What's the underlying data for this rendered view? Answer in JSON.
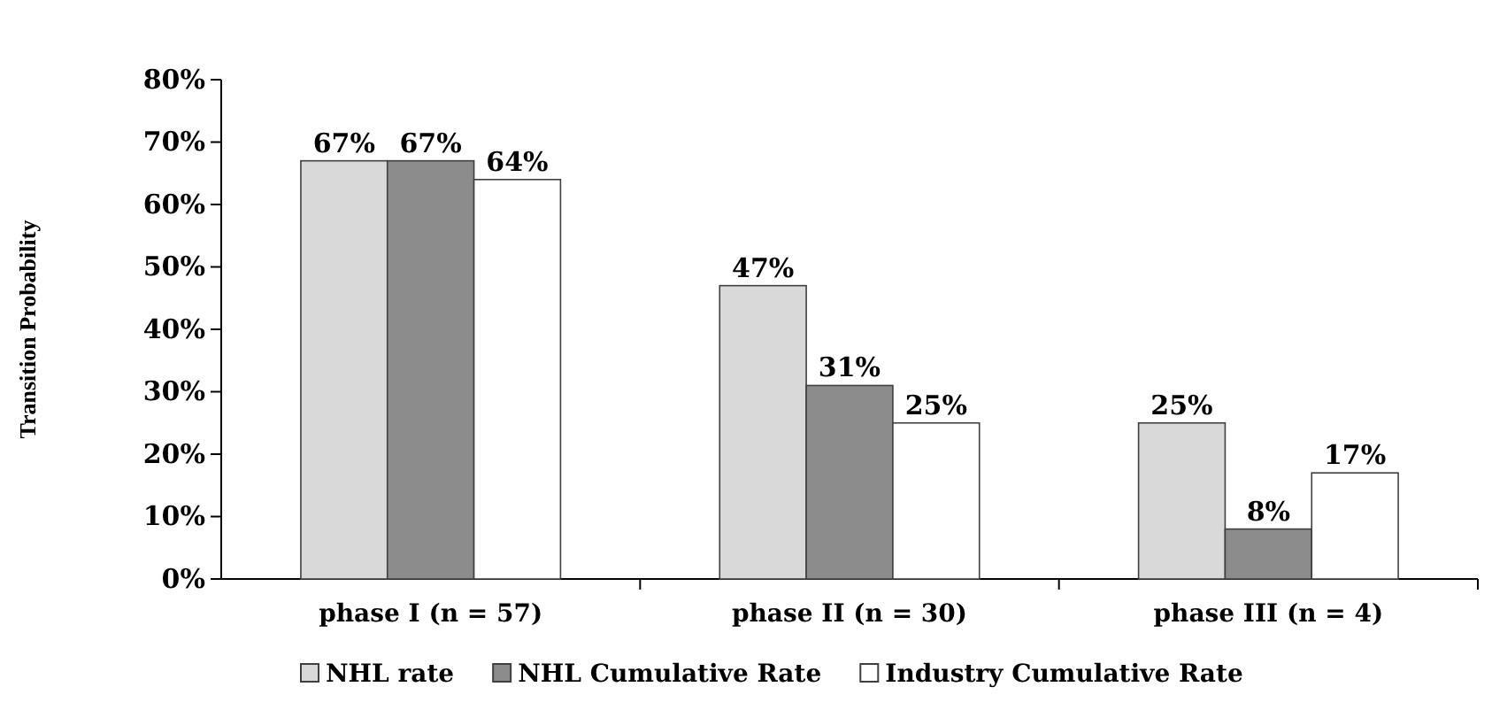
{
  "chart_data": {
    "type": "bar",
    "ylabel": "Transition Probability",
    "categories": [
      "phase I (n = 57)",
      "phase II (n = 30)",
      "phase III (n = 4)"
    ],
    "series": [
      {
        "name": "NHL rate",
        "color": "#d9d9d9",
        "values": [
          67,
          47,
          25
        ]
      },
      {
        "name": "NHL Cumulative Rate",
        "color": "#8c8c8c",
        "values": [
          67,
          31,
          8
        ]
      },
      {
        "name": "Industry Cumulative Rate",
        "color": "#ffffff",
        "values": [
          64,
          25,
          17
        ]
      }
    ],
    "ylim": [
      0,
      80
    ],
    "yticks": [
      {
        "value": 0,
        "label": "0%"
      },
      {
        "value": 10,
        "label": "10%"
      },
      {
        "value": 20,
        "label": "20%"
      },
      {
        "value": 30,
        "label": "30%"
      },
      {
        "value": 40,
        "label": "40%"
      },
      {
        "value": 50,
        "label": "50%"
      },
      {
        "value": 60,
        "label": "60%"
      },
      {
        "value": 70,
        "label": "70%"
      },
      {
        "value": 80,
        "label": "80%"
      }
    ],
    "value_labels": [
      [
        "67%",
        "47%",
        "25%"
      ],
      [
        "67%",
        "31%",
        "8%"
      ],
      [
        "64%",
        "25%",
        "17%"
      ]
    ],
    "legend": "bottom",
    "grid": false
  }
}
